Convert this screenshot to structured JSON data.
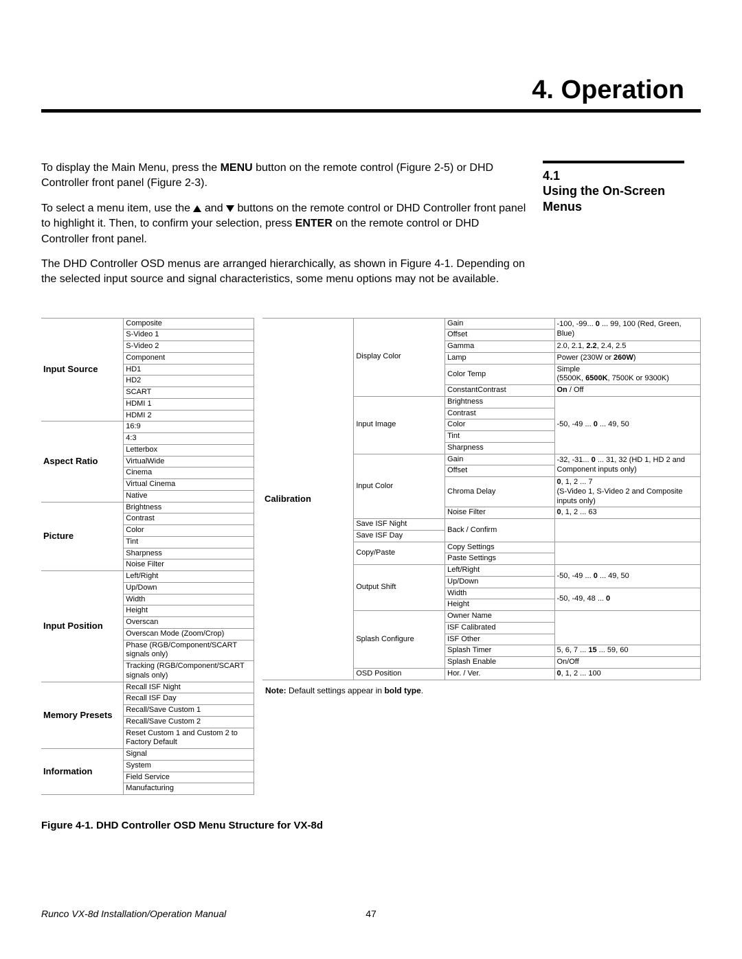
{
  "chapter_title": "4. Operation",
  "section_num": "4.1",
  "section_name": "Using the On-Screen Menus",
  "intro": {
    "p1a": "To display the Main Menu, press the ",
    "p1b": "MENU",
    "p1c": " button on the remote control (Figure 2-5) or DHD Controller front panel (Figure 2-3).",
    "p2a": "To select a menu item, use the ",
    "p2b": " and ",
    "p2c": " buttons on the remote control or DHD Controller front panel to highlight it. Then, to confirm your selection, press ",
    "p2d": "ENTER",
    "p2e": " on the remote control or DHD Controller front panel.",
    "p3": "The DHD Controller OSD menus are arranged hierarchically, as shown in Figure 4-1. Depending on the selected input source and signal characteristics, some menu options may not be available."
  },
  "left_groups": [
    {
      "cat": "Input Source",
      "items": [
        "Composite",
        "S-Video 1",
        "S-Video 2",
        "Component",
        "HD1",
        "HD2",
        "SCART",
        "HDMI 1",
        "HDMI 2"
      ]
    },
    {
      "cat": "Aspect Ratio",
      "items": [
        "16:9",
        "4:3",
        "Letterbox",
        "VirtualWide",
        "Cinema",
        "Virtual Cinema",
        "Native"
      ]
    },
    {
      "cat": "Picture",
      "items": [
        "Brightness",
        "Contrast",
        "Color",
        "Tint",
        "Sharpness",
        "Noise Filter"
      ]
    },
    {
      "cat": "Input Position",
      "items": [
        "Left/Right",
        "Up/Down",
        "Width",
        "Height",
        "Overscan",
        "Overscan Mode (Zoom/Crop)",
        "Phase (RGB/Component/SCART signals only)",
        "Tracking (RGB/Component/SCART signals only)"
      ]
    },
    {
      "cat": "Memory Presets",
      "items": [
        "Recall ISF Night",
        "Recall ISF Day",
        "Recall/Save Custom 1",
        "Recall/Save Custom 2",
        "Reset Custom 1 and Custom 2 to Factory Default"
      ]
    },
    {
      "cat": "Information",
      "items": [
        "Signal",
        "System",
        "Field Service",
        "Manufacturing"
      ]
    }
  ],
  "right": {
    "cat": "Calibration",
    "display_color": {
      "label": "Display Color",
      "rows": [
        {
          "k": "Gain",
          "v": "-100, -99... <b>0</b> ... 99, 100 (Red, Green, Blue)",
          "span": 2,
          "shared": true
        },
        {
          "k": "Offset"
        },
        {
          "k": "Gamma",
          "v": "2.0, 2.1, <b>2.2</b>, 2.4, 2.5"
        },
        {
          "k": "Lamp",
          "v": "Power (230W or <b>260W</b>)"
        },
        {
          "k": "Color Temp",
          "v": "Simple<br>(5500K, <b>6500K</b>, 7500K or 9300K)"
        },
        {
          "k": "ConstantContrast",
          "v": "<b>On</b> / Off"
        }
      ]
    },
    "input_image": {
      "label": "Input Image",
      "value": "-50, -49 ... <b>0</b> ... 49, 50",
      "rows": [
        "Brightness",
        "Contrast",
        "Color",
        "Tint",
        "Sharpness"
      ]
    },
    "input_color": {
      "label": "Input Color",
      "rows": [
        {
          "k": "Gain",
          "v": "-32, -31... <b>0</b> ... 31, 32 (HD 1, HD 2 and Component inputs only)",
          "span": 2,
          "shared": true
        },
        {
          "k": "Offset"
        },
        {
          "k": "Chroma Delay",
          "v": "<b>0</b>, 1, 2 ... 7<br>(S-Video 1, S-Video 2 and Composite inputs only)"
        },
        {
          "k": "Noise Filter",
          "v": "<b>0</b>, 1, 2 ... 63"
        }
      ]
    },
    "save_night": "Save ISF Night",
    "save_day": "Save ISF Day",
    "back_confirm": "Back / Confirm",
    "copy_paste": {
      "label": "Copy/Paste",
      "rows": [
        "Copy Settings",
        "Paste Settings"
      ]
    },
    "output_shift": {
      "label": "Output Shift",
      "rows": [
        {
          "k": "Left/Right",
          "v": "-50, -49 ... <b>0</b> ... 49, 50",
          "span": 2,
          "shared": true
        },
        {
          "k": "Up/Down"
        },
        {
          "k": "Width",
          "v": "-50, -49, 48 ... <b>0</b>",
          "span": 2,
          "shared": true
        },
        {
          "k": "Height"
        }
      ]
    },
    "splash": {
      "label": "Splash Configure",
      "rows": [
        {
          "k": "Owner Name",
          "v": "",
          "span": 3,
          "shared": true
        },
        {
          "k": "ISF Calibrated"
        },
        {
          "k": "ISF Other"
        },
        {
          "k": "Splash Timer",
          "v": "5, 6, 7 ... <b>15</b> ... 59, 60"
        },
        {
          "k": "Splash Enable",
          "v": "On/Off"
        }
      ]
    },
    "osd": {
      "label": "OSD Position",
      "k": "Hor. / Ver.",
      "v": "<b>0</b>, 1, 2 ... 100"
    }
  },
  "note_a": "Note:",
  "note_b": " Default settings appear in ",
  "note_c": "bold type",
  "note_d": ".",
  "fig_caption": "Figure 4-1. DHD Controller OSD Menu Structure for VX-8d",
  "footer_title": "Runco VX-8d Installation/Operation Manual",
  "footer_page": "47"
}
